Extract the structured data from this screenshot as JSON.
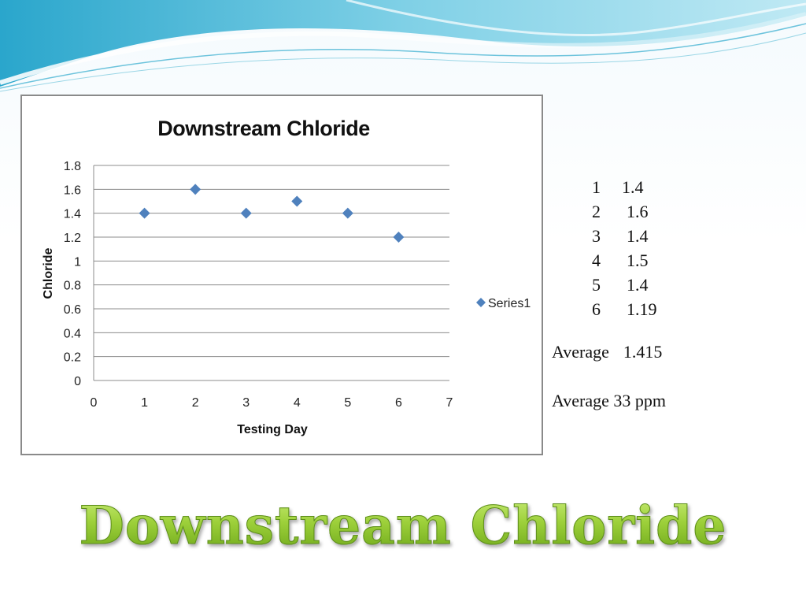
{
  "slide_title": "Downstream Chloride",
  "chart_data": {
    "type": "scatter",
    "title": "Downstream Chloride",
    "xlabel": "Testing Day",
    "ylabel": "Chloride",
    "xlim": [
      0,
      7
    ],
    "ylim": [
      0,
      1.8
    ],
    "x_ticks": [
      "0",
      "1",
      "2",
      "3",
      "4",
      "5",
      "6",
      "7"
    ],
    "y_ticks": [
      "0",
      "0.2",
      "0.4",
      "0.6",
      "0.8",
      "1",
      "1.2",
      "1.4",
      "1.6",
      "1.8"
    ],
    "grid": "horizontal",
    "legend_position": "right",
    "series": [
      {
        "name": "Series1",
        "color": "#4f81bd",
        "marker": "diamond",
        "x": [
          1,
          2,
          3,
          4,
          5,
          6
        ],
        "y": [
          1.4,
          1.6,
          1.4,
          1.5,
          1.4,
          1.2
        ]
      }
    ]
  },
  "data_table": [
    {
      "day": "1",
      "value": "1.4"
    },
    {
      "day": "2",
      "value": "1.6"
    },
    {
      "day": "3",
      "value": "1.4"
    },
    {
      "day": "4",
      "value": "1.5"
    },
    {
      "day": "5",
      "value": "1.4"
    },
    {
      "day": "6",
      "value": "1.19"
    }
  ],
  "average_label": "Average",
  "average_value": "1.415",
  "average_ppm": "Average 33 ppm",
  "colors": {
    "wave_light": "#bfe6f2",
    "wave_dark": "#2aa6cc",
    "title_green": "#9dd03a"
  }
}
